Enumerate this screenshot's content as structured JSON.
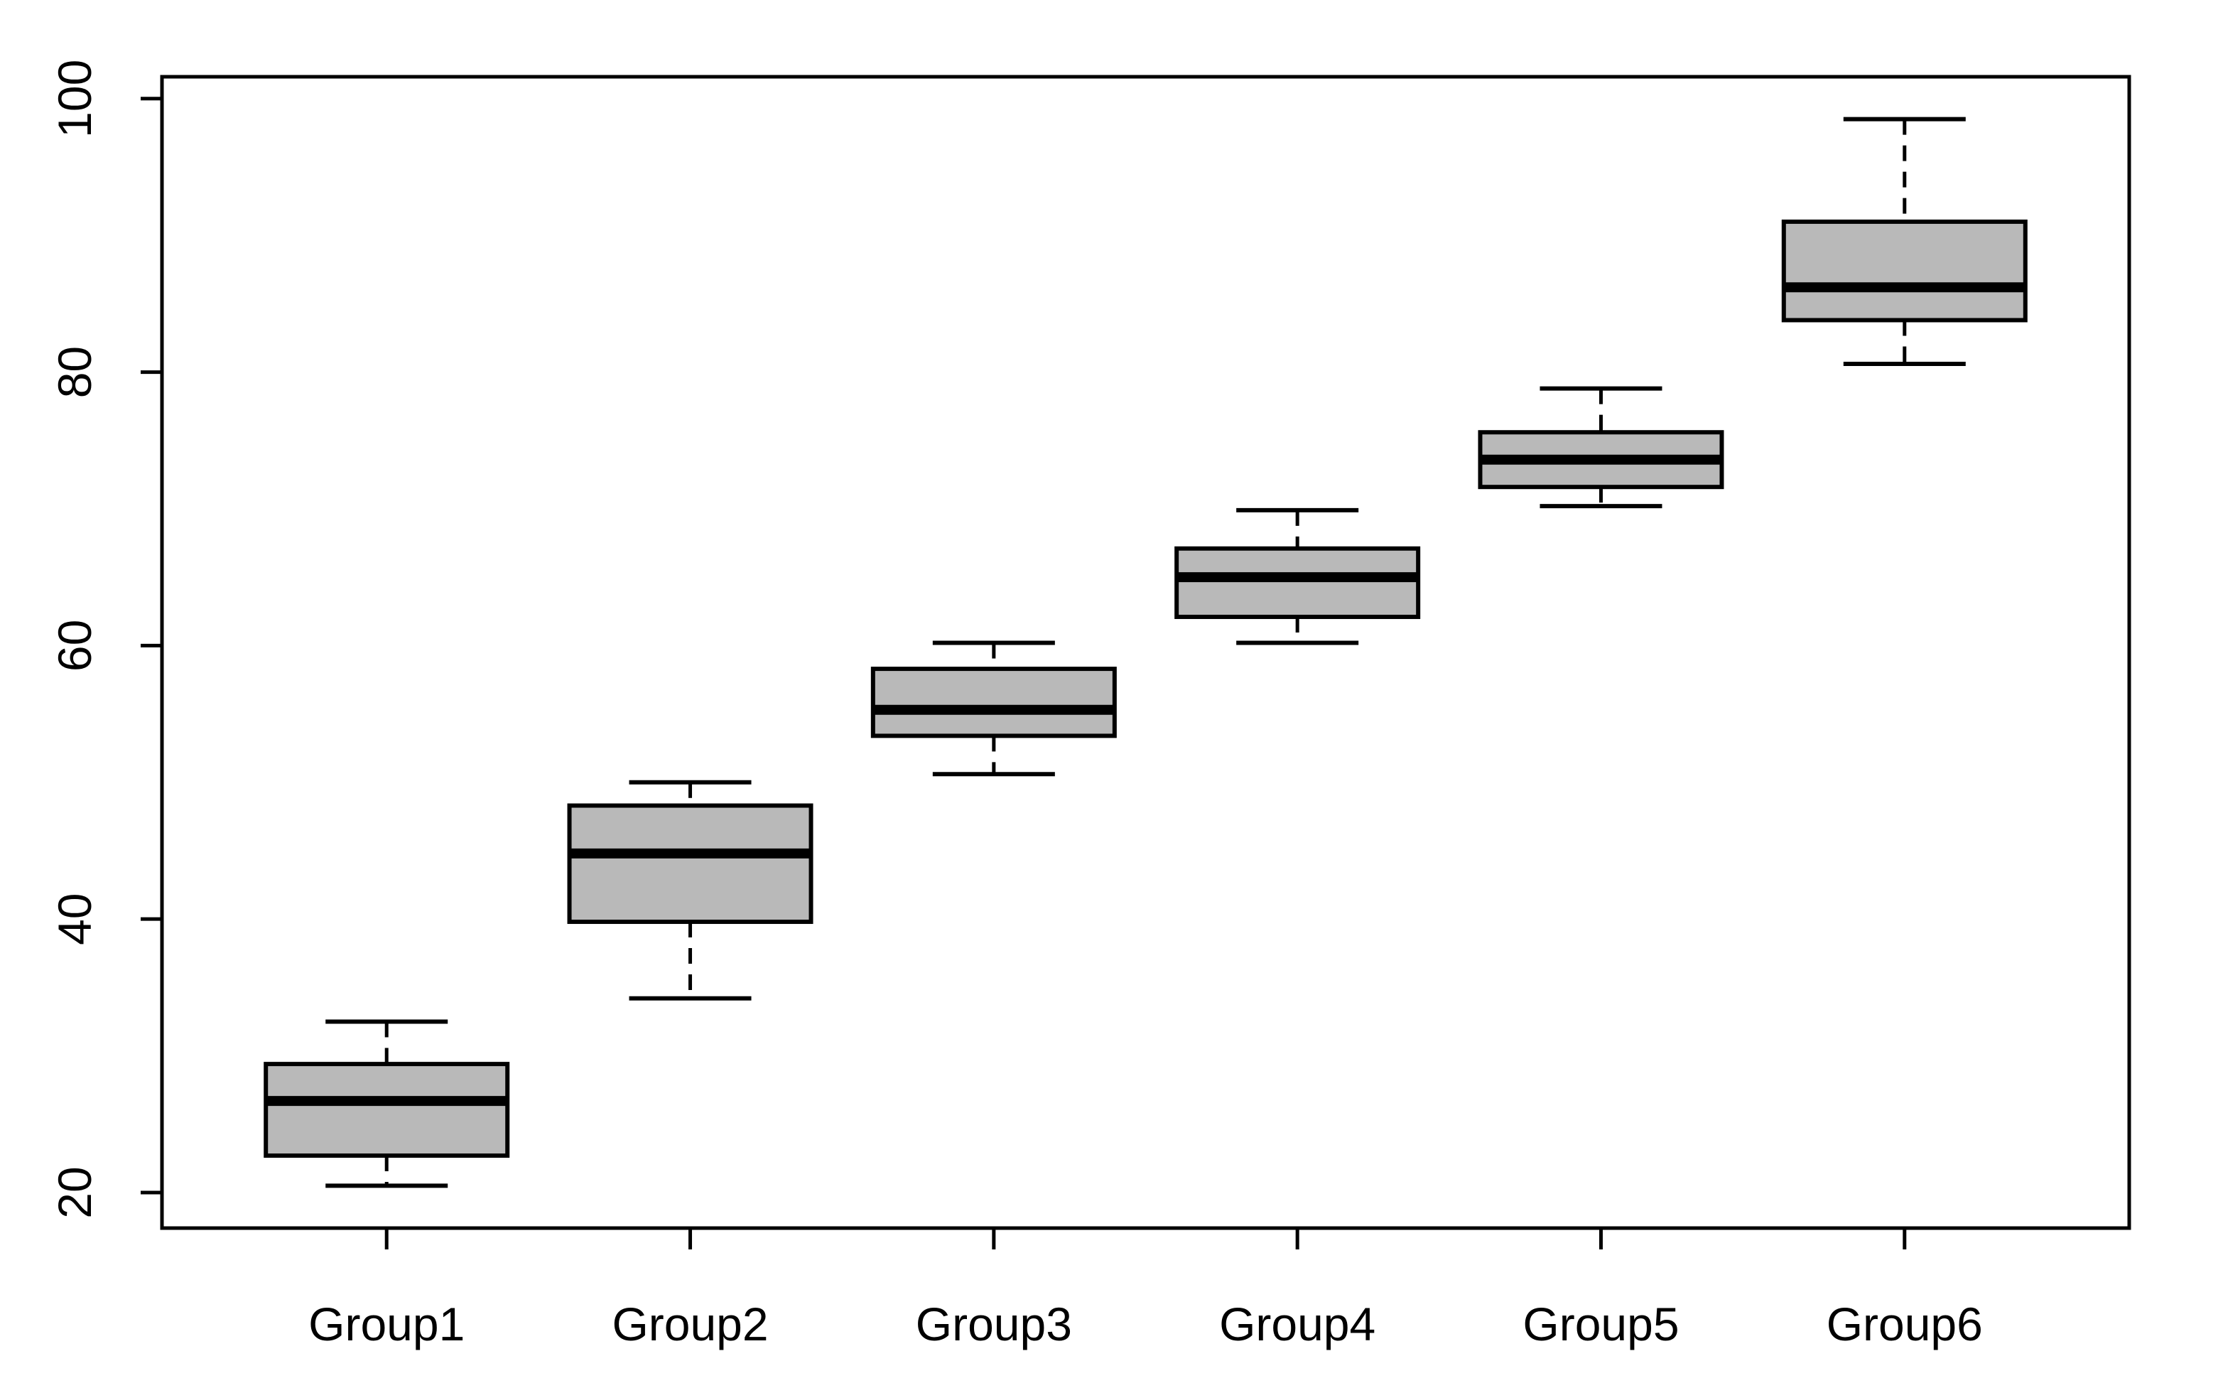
{
  "chart_data": {
    "type": "boxplot",
    "title": "",
    "xlabel": "",
    "ylabel": "",
    "grid": false,
    "legend": null,
    "categories": [
      "Group1",
      "Group2",
      "Group3",
      "Group4",
      "Group5",
      "Group6"
    ],
    "series": [
      {
        "name": "Group1",
        "min": 20.5,
        "q1": 22.7,
        "median": 26.7,
        "q3": 29.4,
        "max": 32.5
      },
      {
        "name": "Group2",
        "min": 34.2,
        "q1": 39.8,
        "median": 44.8,
        "q3": 48.3,
        "max": 50.0
      },
      {
        "name": "Group3",
        "min": 50.6,
        "q1": 53.4,
        "median": 55.3,
        "q3": 58.3,
        "max": 60.2
      },
      {
        "name": "Group4",
        "min": 60.2,
        "q1": 62.1,
        "median": 65.0,
        "q3": 67.1,
        "max": 69.9
      },
      {
        "name": "Group5",
        "min": 70.2,
        "q1": 71.6,
        "median": 73.6,
        "q3": 75.6,
        "max": 78.8
      },
      {
        "name": "Group6",
        "min": 80.6,
        "q1": 83.8,
        "median": 86.2,
        "q3": 91.0,
        "max": 98.5
      }
    ],
    "yticks": [
      20,
      40,
      60,
      80,
      100
    ],
    "ytick_labels": [
      "20",
      "40",
      "60",
      "80",
      "100"
    ],
    "ylim": [
      17.4,
      101.6
    ],
    "xlim": [
      0.26,
      6.74
    ],
    "box_positions": [
      1,
      2,
      3,
      4,
      5,
      6
    ],
    "whisker_style": "dashed",
    "colors": {
      "line": "#000000",
      "box_fill": "#b9b9b9",
      "background": "#ffffff"
    }
  }
}
